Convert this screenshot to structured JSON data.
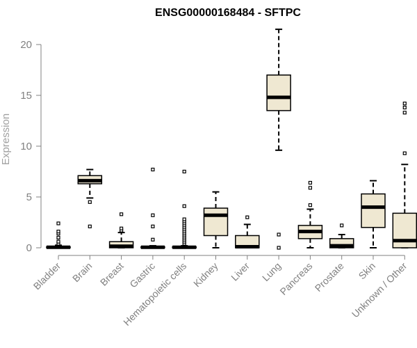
{
  "chart_data": {
    "type": "boxplot",
    "title": "ENSG00000168484 - SFTPC",
    "ylabel": "Expression",
    "xlabel": "",
    "ylim": [
      0,
      21.5
    ],
    "yticks": [
      0,
      5,
      10,
      15,
      20
    ],
    "grid": false,
    "colors": {
      "box_fill": "#efe8d2",
      "box_stroke": "#000000",
      "axis": "#808080",
      "text": "#808080"
    },
    "categories": [
      "Bladder",
      "Brain",
      "Breast",
      "Gastric",
      "Hematopoietic cells",
      "Kidney",
      "Liver",
      "Lung",
      "Pancreas",
      "Prostate",
      "Skin",
      "Unknown / Other"
    ],
    "boxes": [
      {
        "category": "Bladder",
        "whisker_low": 0,
        "q1": 0,
        "median": 0.05,
        "q3": 0.1,
        "whisker_high": 0.25,
        "outliers": [
          0.4,
          0.6,
          1.0,
          1.4,
          1.6,
          2.4
        ]
      },
      {
        "category": "Brain",
        "whisker_low": 4.9,
        "q1": 6.3,
        "median": 6.6,
        "q3": 7.1,
        "whisker_high": 7.7,
        "outliers": [
          4.5,
          2.1
        ]
      },
      {
        "category": "Breast",
        "whisker_low": 0,
        "q1": 0,
        "median": 0.15,
        "q3": 0.6,
        "whisker_high": 1.5,
        "outliers": [
          1.7,
          1.9,
          3.3
        ]
      },
      {
        "category": "Gastric",
        "whisker_low": 0,
        "q1": 0,
        "median": 0.05,
        "q3": 0.1,
        "whisker_high": 0.2,
        "outliers": [
          0.8,
          2.1,
          3.2,
          7.7
        ]
      },
      {
        "category": "Hematopoietic cells",
        "whisker_low": 0,
        "q1": 0,
        "median": 0.05,
        "q3": 0.1,
        "whisker_high": 0.2,
        "outliers": [
          0.4,
          0.6,
          0.8,
          1.0,
          1.2,
          1.4,
          1.6,
          1.8,
          2.0,
          2.2,
          2.4,
          2.6,
          2.8,
          4.1,
          7.5
        ]
      },
      {
        "category": "Kidney",
        "whisker_low": 0,
        "q1": 1.2,
        "median": 3.2,
        "q3": 3.9,
        "whisker_high": 5.5,
        "outliers": []
      },
      {
        "category": "Liver",
        "whisker_low": 0,
        "q1": 0,
        "median": 0.1,
        "q3": 1.2,
        "whisker_high": 2.3,
        "outliers": [
          3.0
        ]
      },
      {
        "category": "Lung",
        "whisker_low": 9.6,
        "q1": 13.5,
        "median": 14.8,
        "q3": 17.0,
        "whisker_high": 21.5,
        "outliers": [
          1.3,
          0
        ]
      },
      {
        "category": "Pancreas",
        "whisker_low": 0,
        "q1": 0.9,
        "median": 1.6,
        "q3": 2.2,
        "whisker_high": 3.8,
        "outliers": [
          4.2,
          5.9,
          6.4
        ]
      },
      {
        "category": "Prostate",
        "whisker_low": 0,
        "q1": 0,
        "median": 0.2,
        "q3": 0.9,
        "whisker_high": 1.3,
        "outliers": [
          2.2
        ]
      },
      {
        "category": "Skin",
        "whisker_low": 0,
        "q1": 2.0,
        "median": 4.0,
        "q3": 5.3,
        "whisker_high": 6.6,
        "outliers": []
      },
      {
        "category": "Unknown / Other",
        "whisker_low": 0,
        "q1": 0,
        "median": 0.7,
        "q3": 3.4,
        "whisker_high": 8.2,
        "outliers": [
          9.3,
          13.3,
          13.8,
          14.2
        ]
      }
    ]
  }
}
